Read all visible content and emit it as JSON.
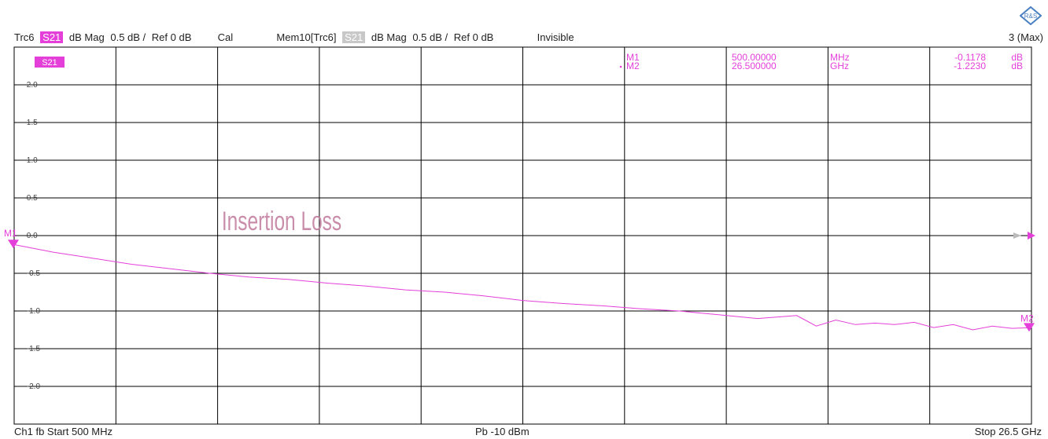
{
  "header": {
    "trace": "Trc6",
    "param": "S21",
    "format": "dB Mag",
    "scale": "0.5 dB /",
    "ref": "Ref 0 dB",
    "cal": "Cal",
    "mem_trace": "Mem10[Trc6]",
    "mem_param": "S21",
    "mem_format": "dB Mag",
    "mem_scale": "0.5 dB /",
    "mem_ref": "Ref 0 dB",
    "mem_state": "Invisible",
    "right": "3 (Max)"
  },
  "footer": {
    "left": "Ch1  fb  Start  500 MHz",
    "center": "Pb   -10 dBm",
    "right": "Stop  26.5 GHz"
  },
  "trace_label": "S21",
  "annotation": "Insertion Loss",
  "markers": [
    {
      "name": "M1",
      "value": "500.00000",
      "unit": "MHz",
      "reading": "-0.1178",
      "runit": "dB"
    },
    {
      "name": "M2",
      "value": "26.500000",
      "unit": "GHz",
      "reading": "-1.2230",
      "runit": "dB"
    }
  ],
  "colors": {
    "trace": "#e43fd9",
    "grid": "#000000"
  },
  "icons": {
    "logo": "rohde-schwarz-logo-icon"
  },
  "chart_data": {
    "type": "line",
    "title": "",
    "xlabel": "",
    "ylabel": "",
    "x_unit": "GHz",
    "xlim": [
      0.5,
      26.5
    ],
    "ylim": [
      -2.5,
      2.5
    ],
    "y_ticks": [
      "2.0",
      "1.5",
      "1.0",
      "0.5",
      "0.0",
      "-0.5",
      "-1.0",
      "-1.5",
      "-2.0"
    ],
    "series": [
      {
        "name": "S21",
        "x": [
          0.5,
          1.5,
          2.5,
          3.5,
          4.5,
          5.5,
          6.5,
          7.5,
          8.5,
          9.5,
          10.5,
          11.5,
          12.5,
          13.5,
          14.5,
          15.5,
          16.5,
          17.5,
          18.5,
          19.5,
          20.5,
          21.0,
          21.5,
          22.0,
          22.5,
          23.0,
          23.5,
          24.0,
          24.5,
          25.0,
          25.5,
          26.0,
          26.5
        ],
        "y": [
          -0.12,
          -0.22,
          -0.3,
          -0.38,
          -0.44,
          -0.5,
          -0.55,
          -0.58,
          -0.63,
          -0.67,
          -0.72,
          -0.75,
          -0.8,
          -0.86,
          -0.9,
          -0.93,
          -0.97,
          -1.0,
          -1.05,
          -1.1,
          -1.06,
          -1.2,
          -1.12,
          -1.18,
          -1.16,
          -1.18,
          -1.15,
          -1.22,
          -1.18,
          -1.25,
          -1.2,
          -1.23,
          -1.22
        ]
      }
    ],
    "markers": [
      {
        "name": "M1",
        "x": 0.5,
        "y": -0.1178
      },
      {
        "name": "M2",
        "x": 26.5,
        "y": -1.223
      }
    ]
  }
}
